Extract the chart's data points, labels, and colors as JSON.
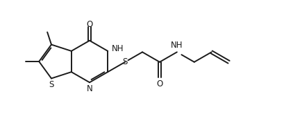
{
  "bg_color": "#ffffff",
  "line_color": "#1a1a1a",
  "line_width": 1.4,
  "font_size": 8.5,
  "fig_width": 4.22,
  "fig_height": 1.78,
  "dpi": 100,
  "xlim": [
    0.0,
    10.0
  ],
  "ylim": [
    0.0,
    4.2
  ]
}
